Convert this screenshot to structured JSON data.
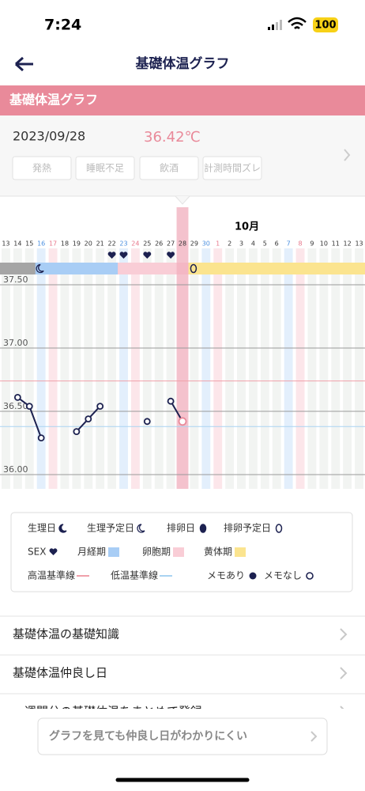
{
  "status_bar": {
    "time": "7:24",
    "battery": "100"
  },
  "header": {
    "title": "基礎体温グラフ"
  },
  "section_title": "基礎体温グラフ",
  "record": {
    "date": "2023/09/28",
    "temperature": "36.42℃",
    "tags": [
      "発熱",
      "睡眠不足",
      "飲酒",
      "計測時間ズレ"
    ]
  },
  "chart_data": {
    "type": "line",
    "month_label": "10月",
    "categories": [
      "13",
      "14",
      "15",
      "16",
      "17",
      "18",
      "19",
      "20",
      "21",
      "22",
      "23",
      "24",
      "25",
      "26",
      "27",
      "28",
      "29",
      "30",
      "1",
      "2",
      "3",
      "4",
      "5",
      "6",
      "7",
      "8",
      "9",
      "10",
      "11",
      "12",
      "13"
    ],
    "series": [
      {
        "color": "#1c2150",
        "values": [
          null,
          36.61,
          36.54,
          36.29,
          null,
          null,
          36.34,
          36.44,
          36.54,
          null,
          null,
          null,
          36.42,
          null,
          36.58,
          36.42,
          null,
          null,
          null,
          null,
          null,
          null,
          null,
          null,
          null,
          null,
          null,
          null,
          null,
          null,
          null
        ]
      }
    ],
    "ylim": [
      35.9,
      37.6
    ],
    "yticks": [
      {
        "value": 36.0,
        "label": "36.00"
      },
      {
        "value": 36.5,
        "label": "36.50"
      },
      {
        "value": 37.0,
        "label": "37.00"
      },
      {
        "value": 37.5,
        "label": "37.50"
      }
    ],
    "high_line": 36.74,
    "low_line": 36.38,
    "selected": "28",
    "saturdays": [
      "16",
      "23",
      "30",
      "7"
    ],
    "sundays": [
      "17",
      "24",
      "1",
      "8"
    ],
    "sex_days": [
      "22",
      "23",
      "25",
      "27"
    ],
    "period_start": "16",
    "ovulation_expected": "29",
    "phases": [
      {
        "name": "月経期",
        "color": "#a8cdf5",
        "start": "16",
        "end": "22"
      },
      {
        "name": "卵胞期",
        "color": "#f9cdd6",
        "start": "23",
        "end": "28"
      },
      {
        "name": "黄体期",
        "color": "#fbe48f",
        "start": "29",
        "end": "13"
      }
    ]
  },
  "legend": [
    [
      {
        "label": "生理日",
        "icon": "moon-filled"
      },
      {
        "label": "生理予定日",
        "icon": "moon-outline"
      },
      {
        "label": "排卵日",
        "icon": "egg-filled"
      },
      {
        "label": "排卵予定日",
        "icon": "egg-outline"
      }
    ],
    [
      {
        "label": "SEX",
        "icon": "heart"
      },
      {
        "label": "月経期",
        "icon": "blue-square"
      },
      {
        "label": "卵胞期",
        "icon": "pink-square"
      },
      {
        "label": "黄体期",
        "icon": "yellow-square"
      }
    ],
    [
      {
        "label": "高温基準線",
        "icon": "pink-line"
      },
      {
        "label": "低温基準線",
        "icon": "blue-line"
      },
      {
        "label": "メモあり",
        "icon": "dot-filled"
      },
      {
        "label": "メモなし",
        "icon": "dot-outline"
      }
    ]
  ],
  "links": [
    "基礎体温の基礎知識",
    "基礎体温仲良し日",
    "一週間分の基礎体温をまとめて登録"
  ],
  "banner": "グラフを見ても仲良し日がわかりにくい"
}
